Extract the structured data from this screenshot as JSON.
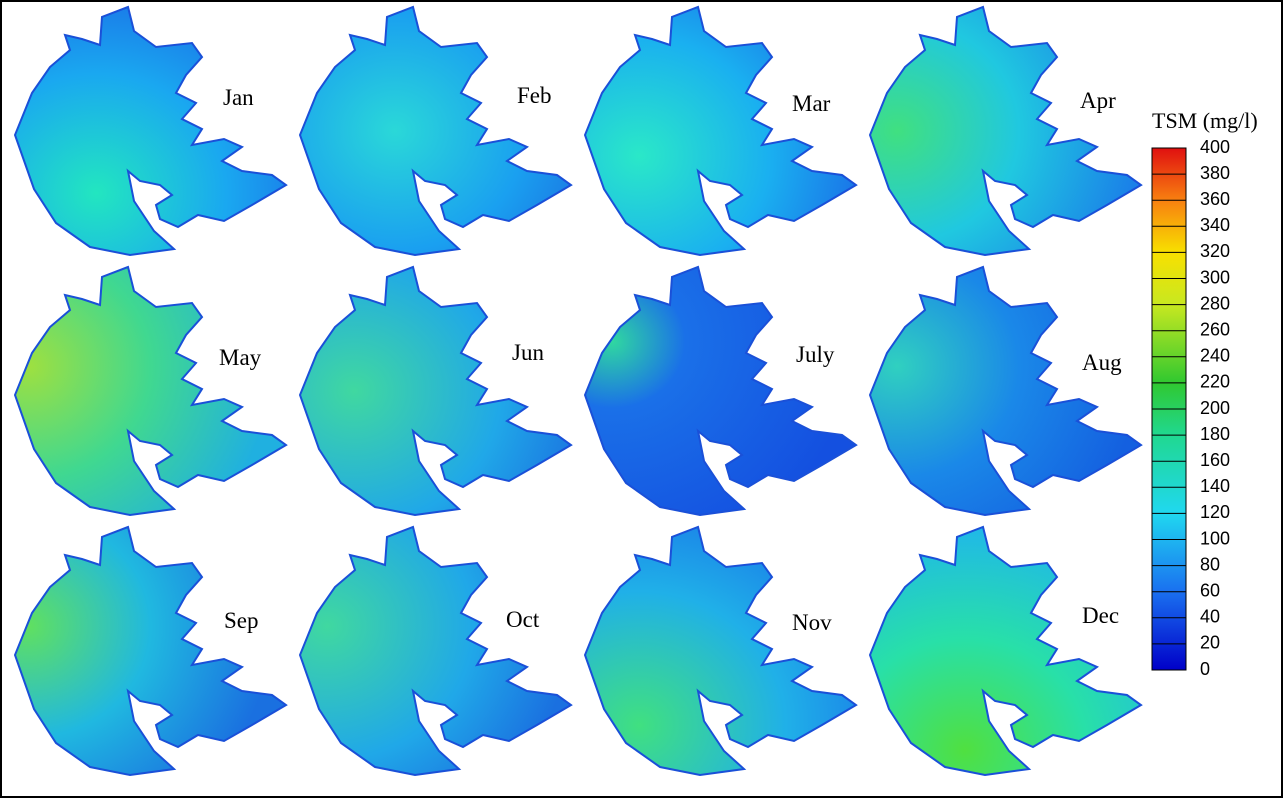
{
  "panels": [
    "Jan",
    "Feb",
    "Mar",
    "Apr",
    "May",
    "Jun",
    "July",
    "Aug",
    "Sep",
    "Oct",
    "Nov",
    "Dec"
  ],
  "colorbar": {
    "title": "TSM (mg/l)",
    "ticks": [
      400,
      380,
      360,
      340,
      320,
      300,
      280,
      260,
      240,
      220,
      200,
      180,
      160,
      140,
      120,
      100,
      80,
      60,
      40,
      20,
      0
    ]
  }
}
